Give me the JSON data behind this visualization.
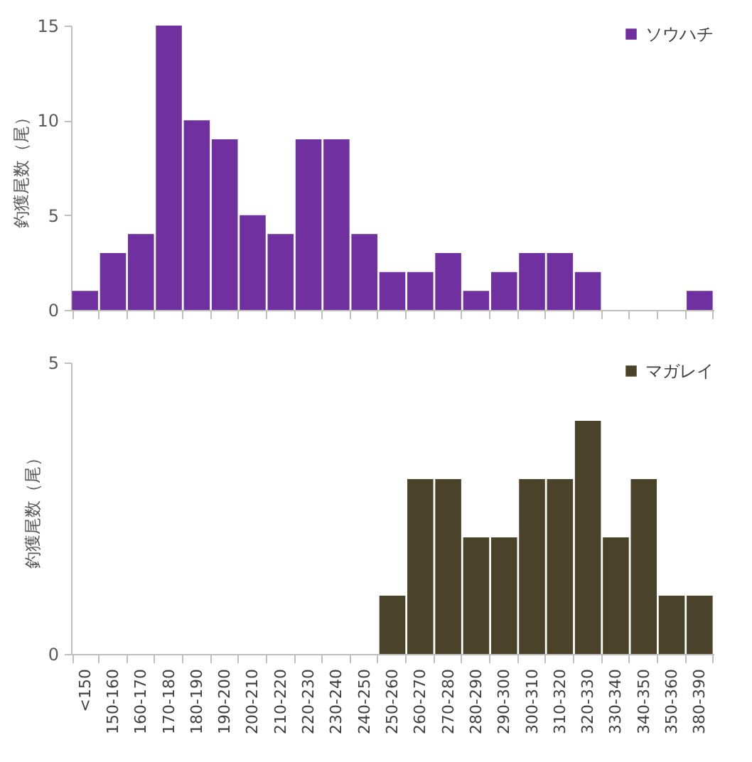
{
  "chart_data": [
    {
      "type": "bar",
      "ylabel": "釣獲尾数（尾）",
      "categories": [
        "<150",
        "150-160",
        "160-170",
        "170-180",
        "180-190",
        "190-200",
        "200-210",
        "210-220",
        "220-230",
        "230-240",
        "240-250",
        "250-260",
        "260-270",
        "270-280",
        "280-290",
        "290-300",
        "300-310",
        "310-320",
        "320-330",
        "330-340",
        "340-350",
        "350-360",
        "380-390"
      ],
      "series": [
        {
          "name": "ソウハチ",
          "color": "#7030a0",
          "values": [
            1,
            3,
            4,
            15,
            10,
            9,
            5,
            4,
            9,
            9,
            4,
            2,
            2,
            3,
            1,
            2,
            3,
            3,
            2,
            0,
            0,
            0,
            1
          ]
        }
      ],
      "ylim": [
        0,
        15
      ],
      "yticks": [
        0,
        5,
        10,
        15
      ],
      "legend": "top right",
      "tick_labels": "y"
    },
    {
      "type": "bar",
      "ylabel": "釣獲尾数（尾）",
      "categories": [
        "<150",
        "150-160",
        "160-170",
        "170-180",
        "180-190",
        "190-200",
        "200-210",
        "210-220",
        "220-230",
        "230-240",
        "240-250",
        "250-260",
        "260-270",
        "270-280",
        "280-290",
        "290-300",
        "300-310",
        "310-320",
        "320-330",
        "330-340",
        "340-350",
        "350-360",
        "380-390"
      ],
      "series": [
        {
          "name": "マガレイ",
          "color": "#4a4229",
          "values": [
            0,
            0,
            0,
            0,
            0,
            0,
            0,
            0,
            0,
            0,
            0,
            1,
            3,
            3,
            2,
            2,
            3,
            3,
            4,
            2,
            3,
            1,
            1
          ]
        }
      ],
      "ylim": [
        0,
        5
      ],
      "yticks": [
        0,
        5
      ],
      "legend": "top right"
    }
  ]
}
